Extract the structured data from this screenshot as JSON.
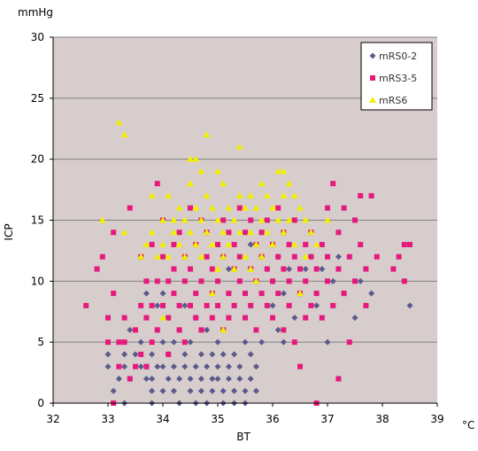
{
  "chart_data": {
    "type": "scatter",
    "title": "",
    "xlabel": "BT",
    "ylabel": "ICP",
    "x_unit": "°C",
    "y_unit": "mmHg",
    "xlim": [
      32,
      39
    ],
    "ylim": [
      0,
      30
    ],
    "x_ticks": [
      "32",
      "33",
      "34",
      "35",
      "36",
      "37",
      "38",
      "39"
    ],
    "y_ticks": [
      "0",
      "5",
      "10",
      "15",
      "20",
      "25",
      "30"
    ],
    "grid": "horizontal",
    "legend_position": "top-right",
    "colors": {
      "plot_bg": "#d7cdcc",
      "grid": "#808080",
      "mrs02": "#5a5a8c",
      "mrs35": "#e6197d",
      "mrs6": "#f0f000"
    },
    "series": [
      {
        "name": "mRS0-2",
        "marker": "diamond",
        "points": [
          [
            33.0,
            4
          ],
          [
            33.0,
            3
          ],
          [
            33.1,
            1
          ],
          [
            33.2,
            2
          ],
          [
            33.3,
            4
          ],
          [
            33.3,
            3
          ],
          [
            33.3,
            0
          ],
          [
            33.4,
            6
          ],
          [
            33.4,
            2
          ],
          [
            33.5,
            4
          ],
          [
            33.6,
            5
          ],
          [
            33.6,
            3
          ],
          [
            33.7,
            3
          ],
          [
            33.7,
            2
          ],
          [
            33.7,
            9
          ],
          [
            33.8,
            4
          ],
          [
            33.8,
            2
          ],
          [
            33.8,
            1
          ],
          [
            33.8,
            0
          ],
          [
            33.9,
            3
          ],
          [
            33.9,
            6
          ],
          [
            33.9,
            8
          ],
          [
            34.0,
            5
          ],
          [
            34.0,
            3
          ],
          [
            34.0,
            1
          ],
          [
            34.0,
            9
          ],
          [
            34.1,
            2
          ],
          [
            34.1,
            4
          ],
          [
            34.1,
            7
          ],
          [
            34.2,
            3
          ],
          [
            34.2,
            5
          ],
          [
            34.2,
            1
          ],
          [
            34.3,
            2
          ],
          [
            34.3,
            6
          ],
          [
            34.3,
            0
          ],
          [
            34.4,
            4
          ],
          [
            34.4,
            3
          ],
          [
            34.4,
            8
          ],
          [
            34.5,
            1
          ],
          [
            34.5,
            5
          ],
          [
            34.5,
            2
          ],
          [
            34.6,
            3
          ],
          [
            34.6,
            0
          ],
          [
            34.6,
            7
          ],
          [
            34.7,
            2
          ],
          [
            34.7,
            4
          ],
          [
            34.7,
            1
          ],
          [
            34.8,
            3
          ],
          [
            34.8,
            6
          ],
          [
            34.8,
            0
          ],
          [
            34.9,
            2
          ],
          [
            34.9,
            4
          ],
          [
            34.9,
            1
          ],
          [
            35.0,
            3
          ],
          [
            35.0,
            2
          ],
          [
            35.0,
            5
          ],
          [
            35.1,
            1
          ],
          [
            35.1,
            4
          ],
          [
            35.1,
            0
          ],
          [
            35.2,
            2
          ],
          [
            35.2,
            3
          ],
          [
            35.2,
            11
          ],
          [
            35.3,
            1
          ],
          [
            35.3,
            4
          ],
          [
            35.3,
            0
          ],
          [
            35.4,
            2
          ],
          [
            35.4,
            3
          ],
          [
            35.5,
            1
          ],
          [
            35.5,
            5
          ],
          [
            35.5,
            0
          ],
          [
            35.6,
            2
          ],
          [
            35.6,
            4
          ],
          [
            35.6,
            13
          ],
          [
            35.7,
            3
          ],
          [
            35.7,
            1
          ],
          [
            35.8,
            5
          ],
          [
            35.8,
            12
          ],
          [
            35.9,
            11
          ],
          [
            36.0,
            8
          ],
          [
            36.0,
            10
          ],
          [
            36.1,
            6
          ],
          [
            36.1,
            12
          ],
          [
            36.2,
            9
          ],
          [
            36.2,
            5
          ],
          [
            36.3,
            11
          ],
          [
            36.4,
            7
          ],
          [
            36.5,
            9
          ],
          [
            36.6,
            11
          ],
          [
            36.7,
            12
          ],
          [
            36.8,
            8
          ],
          [
            36.9,
            11
          ],
          [
            37.0,
            5
          ],
          [
            37.1,
            10
          ],
          [
            37.2,
            12
          ],
          [
            37.3,
            9
          ],
          [
            37.5,
            7
          ],
          [
            37.6,
            10
          ],
          [
            37.8,
            9
          ],
          [
            38.5,
            8
          ]
        ]
      },
      {
        "name": "mRS3-5",
        "marker": "square",
        "points": [
          [
            32.6,
            8
          ],
          [
            32.8,
            11
          ],
          [
            32.9,
            12
          ],
          [
            33.0,
            5
          ],
          [
            33.0,
            7
          ],
          [
            33.1,
            9
          ],
          [
            33.1,
            14
          ],
          [
            33.1,
            0
          ],
          [
            33.2,
            5
          ],
          [
            33.2,
            3
          ],
          [
            33.3,
            5
          ],
          [
            33.3,
            7
          ],
          [
            33.4,
            16
          ],
          [
            33.4,
            2
          ],
          [
            33.5,
            6
          ],
          [
            33.5,
            3
          ],
          [
            33.6,
            8
          ],
          [
            33.6,
            12
          ],
          [
            33.6,
            4
          ],
          [
            33.7,
            10
          ],
          [
            33.7,
            7
          ],
          [
            33.7,
            3
          ],
          [
            33.8,
            8
          ],
          [
            33.8,
            13
          ],
          [
            33.8,
            5
          ],
          [
            33.9,
            18
          ],
          [
            33.9,
            10
          ],
          [
            33.9,
            6
          ],
          [
            34.0,
            8
          ],
          [
            34.0,
            12
          ],
          [
            34.0,
            15
          ],
          [
            34.1,
            7
          ],
          [
            34.1,
            10
          ],
          [
            34.1,
            4
          ],
          [
            34.2,
            11
          ],
          [
            34.2,
            9
          ],
          [
            34.2,
            13
          ],
          [
            34.3,
            6
          ],
          [
            34.3,
            14
          ],
          [
            34.3,
            8
          ],
          [
            34.4,
            10
          ],
          [
            34.4,
            12
          ],
          [
            34.4,
            5
          ],
          [
            34.5,
            8
          ],
          [
            34.5,
            16
          ],
          [
            34.5,
            11
          ],
          [
            34.6,
            7
          ],
          [
            34.6,
            13
          ],
          [
            34.6,
            9
          ],
          [
            34.7,
            10
          ],
          [
            34.7,
            15
          ],
          [
            34.7,
            6
          ],
          [
            34.8,
            8
          ],
          [
            34.8,
            12
          ],
          [
            34.8,
            14
          ],
          [
            34.9,
            9
          ],
          [
            34.9,
            11
          ],
          [
            34.9,
            7
          ],
          [
            35.0,
            10
          ],
          [
            35.0,
            13
          ],
          [
            35.0,
            8
          ],
          [
            35.1,
            12
          ],
          [
            35.1,
            6
          ],
          [
            35.1,
            15
          ],
          [
            35.2,
            9
          ],
          [
            35.2,
            14
          ],
          [
            35.2,
            7
          ],
          [
            35.3,
            11
          ],
          [
            35.3,
            13
          ],
          [
            35.3,
            8
          ],
          [
            35.4,
            10
          ],
          [
            35.4,
            16
          ],
          [
            35.4,
            12
          ],
          [
            35.5,
            9
          ],
          [
            35.5,
            14
          ],
          [
            35.5,
            7
          ],
          [
            35.6,
            11
          ],
          [
            35.6,
            15
          ],
          [
            35.6,
            8
          ],
          [
            35.7,
            10
          ],
          [
            35.7,
            13
          ],
          [
            35.7,
            6
          ],
          [
            35.8,
            9
          ],
          [
            35.8,
            12
          ],
          [
            35.8,
            14
          ],
          [
            35.9,
            8
          ],
          [
            35.9,
            11
          ],
          [
            35.9,
            15
          ],
          [
            36.0,
            10
          ],
          [
            36.0,
            13
          ],
          [
            36.0,
            7
          ],
          [
            36.1,
            12
          ],
          [
            36.1,
            9
          ],
          [
            36.1,
            16
          ],
          [
            36.2,
            11
          ],
          [
            36.2,
            6
          ],
          [
            36.2,
            14
          ],
          [
            36.3,
            8
          ],
          [
            36.3,
            13
          ],
          [
            36.3,
            10
          ],
          [
            36.4,
            12
          ],
          [
            36.4,
            15
          ],
          [
            36.4,
            5
          ],
          [
            36.5,
            9
          ],
          [
            36.5,
            11
          ],
          [
            36.5,
            3
          ],
          [
            36.6,
            13
          ],
          [
            36.6,
            7
          ],
          [
            36.6,
            10
          ],
          [
            36.7,
            12
          ],
          [
            36.7,
            14
          ],
          [
            36.7,
            8
          ],
          [
            36.8,
            11
          ],
          [
            36.8,
            9
          ],
          [
            36.8,
            0
          ],
          [
            36.9,
            13
          ],
          [
            36.9,
            7
          ],
          [
            37.0,
            12
          ],
          [
            37.0,
            16
          ],
          [
            37.0,
            10
          ],
          [
            37.1,
            8
          ],
          [
            37.1,
            18
          ],
          [
            37.2,
            11
          ],
          [
            37.2,
            14
          ],
          [
            37.2,
            2
          ],
          [
            37.3,
            9
          ],
          [
            37.3,
            16
          ],
          [
            37.4,
            12
          ],
          [
            37.4,
            5
          ],
          [
            37.5,
            10
          ],
          [
            37.5,
            15
          ],
          [
            37.6,
            13
          ],
          [
            37.6,
            17
          ],
          [
            37.7,
            11
          ],
          [
            37.7,
            8
          ],
          [
            37.8,
            17
          ],
          [
            37.9,
            12
          ],
          [
            38.2,
            11
          ],
          [
            38.3,
            12
          ],
          [
            38.4,
            13
          ],
          [
            38.5,
            13
          ],
          [
            38.4,
            10
          ]
        ]
      },
      {
        "name": "mRS6",
        "marker": "triangle",
        "points": [
          [
            32.9,
            15
          ],
          [
            33.2,
            23
          ],
          [
            33.3,
            22
          ],
          [
            33.3,
            14
          ],
          [
            33.6,
            12
          ],
          [
            33.7,
            13
          ],
          [
            33.8,
            17
          ],
          [
            33.8,
            14
          ],
          [
            33.9,
            12
          ],
          [
            34.0,
            15
          ],
          [
            34.0,
            13
          ],
          [
            34.1,
            17
          ],
          [
            34.1,
            12
          ],
          [
            34.2,
            15
          ],
          [
            34.2,
            14
          ],
          [
            34.3,
            16
          ],
          [
            34.3,
            13
          ],
          [
            34.4,
            15
          ],
          [
            34.4,
            12
          ],
          [
            34.5,
            20
          ],
          [
            34.5,
            18
          ],
          [
            34.5,
            14
          ],
          [
            34.6,
            20
          ],
          [
            34.6,
            16
          ],
          [
            34.6,
            13
          ],
          [
            34.7,
            19
          ],
          [
            34.7,
            15
          ],
          [
            34.7,
            12
          ],
          [
            34.8,
            22
          ],
          [
            34.8,
            17
          ],
          [
            34.8,
            14
          ],
          [
            34.9,
            16
          ],
          [
            34.9,
            13
          ],
          [
            35.0,
            19
          ],
          [
            35.0,
            15
          ],
          [
            35.0,
            11
          ],
          [
            35.1,
            18
          ],
          [
            35.1,
            14
          ],
          [
            35.1,
            12
          ],
          [
            35.2,
            16
          ],
          [
            35.2,
            13
          ],
          [
            35.3,
            15
          ],
          [
            35.3,
            11
          ],
          [
            35.4,
            21
          ],
          [
            35.4,
            17
          ],
          [
            35.4,
            14
          ],
          [
            35.5,
            16
          ],
          [
            35.5,
            12
          ],
          [
            35.6,
            17
          ],
          [
            35.6,
            14
          ],
          [
            35.6,
            11
          ],
          [
            35.7,
            16
          ],
          [
            35.7,
            13
          ],
          [
            35.8,
            18
          ],
          [
            35.8,
            15
          ],
          [
            35.8,
            12
          ],
          [
            35.9,
            17
          ],
          [
            35.9,
            14
          ],
          [
            36.0,
            16
          ],
          [
            36.0,
            13
          ],
          [
            36.1,
            19
          ],
          [
            36.1,
            15
          ],
          [
            36.2,
            19
          ],
          [
            36.2,
            17
          ],
          [
            36.2,
            14
          ],
          [
            36.3,
            18
          ],
          [
            36.3,
            15
          ],
          [
            36.4,
            17
          ],
          [
            36.4,
            13
          ],
          [
            36.5,
            16
          ],
          [
            36.6,
            12
          ],
          [
            36.6,
            15
          ],
          [
            36.7,
            14
          ],
          [
            36.8,
            13
          ],
          [
            37.0,
            15
          ],
          [
            34.0,
            7
          ],
          [
            34.9,
            9
          ],
          [
            35.1,
            6
          ],
          [
            35.7,
            10
          ],
          [
            36.5,
            9
          ]
        ]
      }
    ]
  }
}
